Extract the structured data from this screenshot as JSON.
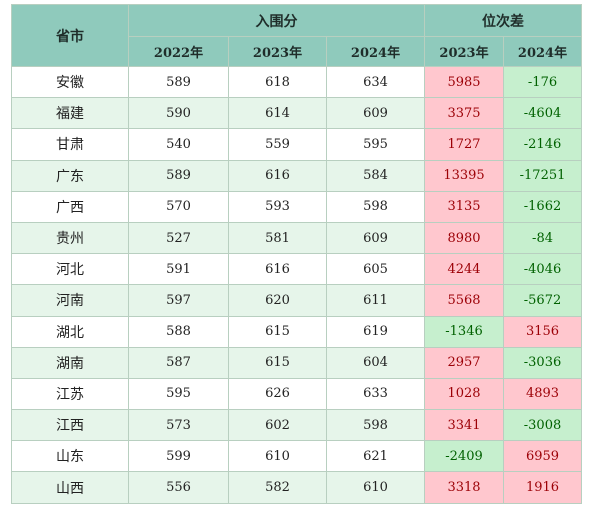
{
  "table": {
    "header": {
      "province_label": "省市",
      "group_score_label": "入围分",
      "group_rank_label": "位次差",
      "years_score": [
        "2022年",
        "2023年",
        "2024年"
      ],
      "years_rank": [
        "2023年",
        "2024年"
      ]
    },
    "rows": [
      {
        "province": "安徽",
        "s2022": "589",
        "s2023": "618",
        "s2024": "634",
        "r2023": "5985",
        "r2024": "-176"
      },
      {
        "province": "福建",
        "s2022": "590",
        "s2023": "614",
        "s2024": "609",
        "r2023": "3375",
        "r2024": "-4604"
      },
      {
        "province": "甘肃",
        "s2022": "540",
        "s2023": "559",
        "s2024": "595",
        "r2023": "1727",
        "r2024": "-2146"
      },
      {
        "province": "广东",
        "s2022": "589",
        "s2023": "616",
        "s2024": "584",
        "r2023": "13395",
        "r2024": "-17251"
      },
      {
        "province": "广西",
        "s2022": "570",
        "s2023": "593",
        "s2024": "598",
        "r2023": "3135",
        "r2024": "-1662"
      },
      {
        "province": "贵州",
        "s2022": "527",
        "s2023": "581",
        "s2024": "609",
        "r2023": "8980",
        "r2024": "-84"
      },
      {
        "province": "河北",
        "s2022": "591",
        "s2023": "616",
        "s2024": "605",
        "r2023": "4244",
        "r2024": "-4046"
      },
      {
        "province": "河南",
        "s2022": "597",
        "s2023": "620",
        "s2024": "611",
        "r2023": "5568",
        "r2024": "-5672"
      },
      {
        "province": "湖北",
        "s2022": "588",
        "s2023": "615",
        "s2024": "619",
        "r2023": "-1346",
        "r2024": "3156"
      },
      {
        "province": "湖南",
        "s2022": "587",
        "s2023": "615",
        "s2024": "604",
        "r2023": "2957",
        "r2024": "-3036"
      },
      {
        "province": "江苏",
        "s2022": "595",
        "s2023": "626",
        "s2024": "633",
        "r2023": "1028",
        "r2024": "4893"
      },
      {
        "province": "江西",
        "s2022": "573",
        "s2023": "602",
        "s2024": "598",
        "r2023": "3341",
        "r2024": "-3008"
      },
      {
        "province": "山东",
        "s2022": "599",
        "s2023": "610",
        "s2024": "621",
        "r2023": "-2409",
        "r2024": "6959"
      },
      {
        "province": "山西",
        "s2022": "556",
        "s2023": "582",
        "s2024": "610",
        "r2023": "3318",
        "r2024": "1916"
      }
    ]
  },
  "colors": {
    "header_bg": "#8fcabc",
    "alt_row_bg": "#e6f5ea",
    "positive_bg": "#ffc7ce",
    "negative_bg": "#c6efce"
  }
}
